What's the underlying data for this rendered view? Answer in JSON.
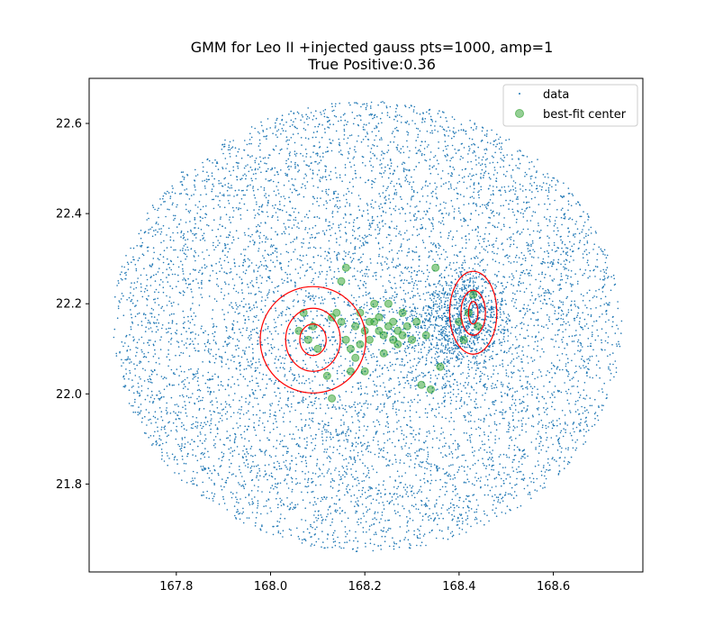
{
  "chart_data": {
    "type": "scatter",
    "title": "GMM for Leo II +injected gauss pts=1000, amp=1",
    "subtitle": "True Positive:0.36",
    "xlabel": "",
    "ylabel": "",
    "xlim": [
      167.615,
      168.79
    ],
    "ylim": [
      21.605,
      22.7
    ],
    "xticks": [
      "167.8",
      "168.0",
      "168.2",
      "168.4",
      "168.6"
    ],
    "yticks": [
      "21.8",
      "22.0",
      "22.2",
      "22.4",
      "22.6"
    ],
    "grid": false,
    "legend_placement": "top-right",
    "colors": {
      "data": "#1f77b4",
      "center": "#2ca02c",
      "ellipse": "#ff0000"
    },
    "legend": [
      {
        "label": "data",
        "marker": "dot"
      },
      {
        "label": "best-fit center",
        "marker": "circle"
      }
    ],
    "series": [
      {
        "name": "data",
        "distribution": "uniform disc with two concentrated clumps",
        "field": {
          "cx": 168.205,
          "cy": 22.15,
          "rx": 0.54,
          "ry": 0.5
        },
        "clumps": [
          {
            "cx": 168.42,
            "cy": 22.17,
            "sx": 0.04,
            "sy": 0.05
          },
          {
            "cx": 168.36,
            "cy": 22.15,
            "sx": 0.06,
            "sy": 0.05
          }
        ]
      },
      {
        "name": "best-fit center",
        "points": [
          [
            168.07,
            22.18
          ],
          [
            168.09,
            22.15
          ],
          [
            168.1,
            22.1
          ],
          [
            168.08,
            22.12
          ],
          [
            168.06,
            22.14
          ],
          [
            168.13,
            22.17
          ],
          [
            168.14,
            22.18
          ],
          [
            168.15,
            22.16
          ],
          [
            168.16,
            22.12
          ],
          [
            168.17,
            22.1
          ],
          [
            168.18,
            22.15
          ],
          [
            168.19,
            22.18
          ],
          [
            168.2,
            22.14
          ],
          [
            168.21,
            22.12
          ],
          [
            168.22,
            22.16
          ],
          [
            168.23,
            22.14
          ],
          [
            168.24,
            22.13
          ],
          [
            168.25,
            22.15
          ],
          [
            168.26,
            22.12
          ],
          [
            168.27,
            22.11
          ],
          [
            168.28,
            22.13
          ],
          [
            168.29,
            22.15
          ],
          [
            168.3,
            22.12
          ],
          [
            168.31,
            22.16
          ],
          [
            168.33,
            22.13
          ],
          [
            168.22,
            22.2
          ],
          [
            168.25,
            22.2
          ],
          [
            168.28,
            22.18
          ],
          [
            168.15,
            22.25
          ],
          [
            168.16,
            22.28
          ],
          [
            168.12,
            22.04
          ],
          [
            168.13,
            21.99
          ],
          [
            168.18,
            22.08
          ],
          [
            168.2,
            22.05
          ],
          [
            168.24,
            22.09
          ],
          [
            168.32,
            22.02
          ],
          [
            168.34,
            22.01
          ],
          [
            168.36,
            22.06
          ],
          [
            168.35,
            22.28
          ],
          [
            168.4,
            22.16
          ],
          [
            168.42,
            22.18
          ],
          [
            168.43,
            22.22
          ],
          [
            168.44,
            22.15
          ],
          [
            168.41,
            22.12
          ],
          [
            168.23,
            22.17
          ],
          [
            168.21,
            22.16
          ],
          [
            168.26,
            22.16
          ],
          [
            168.19,
            22.11
          ],
          [
            168.17,
            22.05
          ],
          [
            168.27,
            22.14
          ]
        ]
      }
    ],
    "ellipses": [
      {
        "cx": 168.09,
        "cy": 22.12,
        "rx": 0.028,
        "ry": 0.035
      },
      {
        "cx": 168.09,
        "cy": 22.12,
        "rx": 0.058,
        "ry": 0.07
      },
      {
        "cx": 168.09,
        "cy": 22.12,
        "rx": 0.112,
        "ry": 0.118
      },
      {
        "cx": 168.43,
        "cy": 22.18,
        "rx": 0.01,
        "ry": 0.025
      },
      {
        "cx": 168.43,
        "cy": 22.18,
        "rx": 0.026,
        "ry": 0.05
      },
      {
        "cx": 168.43,
        "cy": 22.18,
        "rx": 0.05,
        "ry": 0.092
      }
    ]
  }
}
